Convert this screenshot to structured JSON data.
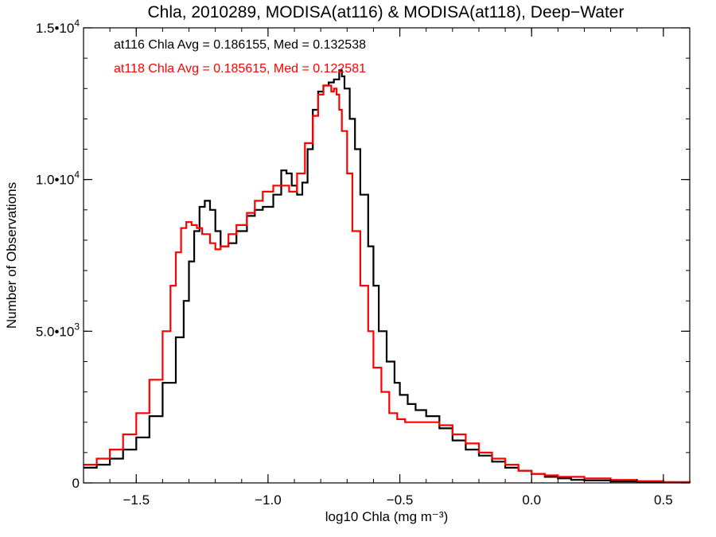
{
  "chart_data": {
    "type": "line",
    "title": "Chla, 2010289, MODISA(at116) & MODISA(at118), Deep−Water",
    "xlabel": "log10 Chla (mg m⁻³)",
    "ylabel": "Number of Observations",
    "xlim": [
      -1.7,
      0.6
    ],
    "ylim": [
      0,
      15000
    ],
    "xticks": [
      {
        "value": -1.5,
        "label": "−1.5"
      },
      {
        "value": -1.0,
        "label": "−1.0"
      },
      {
        "value": -0.5,
        "label": "−0.5"
      },
      {
        "value": 0.0,
        "label": "0.0"
      },
      {
        "value": 0.5,
        "label": "0.5"
      }
    ],
    "yticks": [
      {
        "value": 0,
        "mant": "0",
        "exp": ""
      },
      {
        "value": 5000,
        "mant": "5.0•10",
        "exp": "3"
      },
      {
        "value": 10000,
        "mant": "1.0•10",
        "exp": "4"
      },
      {
        "value": 15000,
        "mant": "1.5•10",
        "exp": "4"
      }
    ],
    "grid": false,
    "annotations": [
      {
        "text": "at116 Chla Avg = 0.186155, Med = 0.132538",
        "color": "#000000"
      },
      {
        "text": "at118 Chla Avg = 0.185615, Med = 0.122581",
        "color": "#ff0000"
      }
    ],
    "series": [
      {
        "color": "#000000",
        "x": [
          -1.7,
          -1.65,
          -1.6,
          -1.55,
          -1.5,
          -1.45,
          -1.4,
          -1.35,
          -1.32,
          -1.3,
          -1.28,
          -1.26,
          -1.24,
          -1.22,
          -1.2,
          -1.18,
          -1.15,
          -1.12,
          -1.08,
          -1.05,
          -1.02,
          -0.98,
          -0.95,
          -0.93,
          -0.91,
          -0.89,
          -0.87,
          -0.85,
          -0.83,
          -0.81,
          -0.79,
          -0.77,
          -0.75,
          -0.73,
          -0.72,
          -0.71,
          -0.69,
          -0.67,
          -0.65,
          -0.62,
          -0.6,
          -0.58,
          -0.55,
          -0.52,
          -0.5,
          -0.47,
          -0.44,
          -0.4,
          -0.35,
          -0.3,
          -0.25,
          -0.2,
          -0.15,
          -0.1,
          -0.05,
          0.0,
          0.05,
          0.1,
          0.15,
          0.2,
          0.3,
          0.4,
          0.5,
          0.6
        ],
        "y": [
          500,
          600,
          800,
          1100,
          1500,
          2200,
          3300,
          4800,
          6000,
          7300,
          8300,
          9100,
          9300,
          9000,
          8300,
          7800,
          7900,
          8300,
          8800,
          9000,
          9100,
          9500,
          10300,
          10200,
          9800,
          9500,
          9900,
          11000,
          12300,
          12900,
          13100,
          13200,
          13300,
          13600,
          13400,
          13000,
          12000,
          11000,
          9500,
          7800,
          6500,
          5000,
          4000,
          3300,
          2900,
          2600,
          2400,
          2200,
          1800,
          1400,
          1100,
          900,
          700,
          500,
          400,
          300,
          200,
          150,
          100,
          80,
          50,
          30,
          20,
          10
        ]
      },
      {
        "color": "#ff0000",
        "x": [
          -1.7,
          -1.65,
          -1.6,
          -1.55,
          -1.5,
          -1.45,
          -1.4,
          -1.37,
          -1.35,
          -1.33,
          -1.31,
          -1.29,
          -1.27,
          -1.25,
          -1.22,
          -1.2,
          -1.18,
          -1.15,
          -1.12,
          -1.08,
          -1.05,
          -1.02,
          -0.98,
          -0.95,
          -0.92,
          -0.89,
          -0.86,
          -0.83,
          -0.81,
          -0.79,
          -0.77,
          -0.76,
          -0.75,
          -0.74,
          -0.73,
          -0.72,
          -0.7,
          -0.68,
          -0.65,
          -0.62,
          -0.6,
          -0.57,
          -0.54,
          -0.51,
          -0.48,
          -0.45,
          -0.41,
          -0.38,
          -0.35,
          -0.3,
          -0.25,
          -0.2,
          -0.15,
          -0.1,
          -0.05,
          0.0,
          0.05,
          0.1,
          0.2,
          0.3,
          0.4,
          0.5,
          0.6
        ],
        "y": [
          600,
          800,
          1100,
          1600,
          2300,
          3400,
          5000,
          6500,
          7600,
          8400,
          8600,
          8500,
          8400,
          8200,
          7900,
          7700,
          7800,
          8200,
          8500,
          8900,
          9300,
          9600,
          9800,
          9800,
          9600,
          10200,
          11200,
          12100,
          12800,
          13100,
          13100,
          12900,
          13000,
          12800,
          12300,
          11600,
          10200,
          8300,
          6500,
          5000,
          3800,
          3000,
          2300,
          2100,
          2000,
          2000,
          2000,
          2000,
          1900,
          1600,
          1300,
          1000,
          800,
          600,
          400,
          300,
          250,
          200,
          150,
          100,
          60,
          30,
          10
        ]
      }
    ]
  }
}
